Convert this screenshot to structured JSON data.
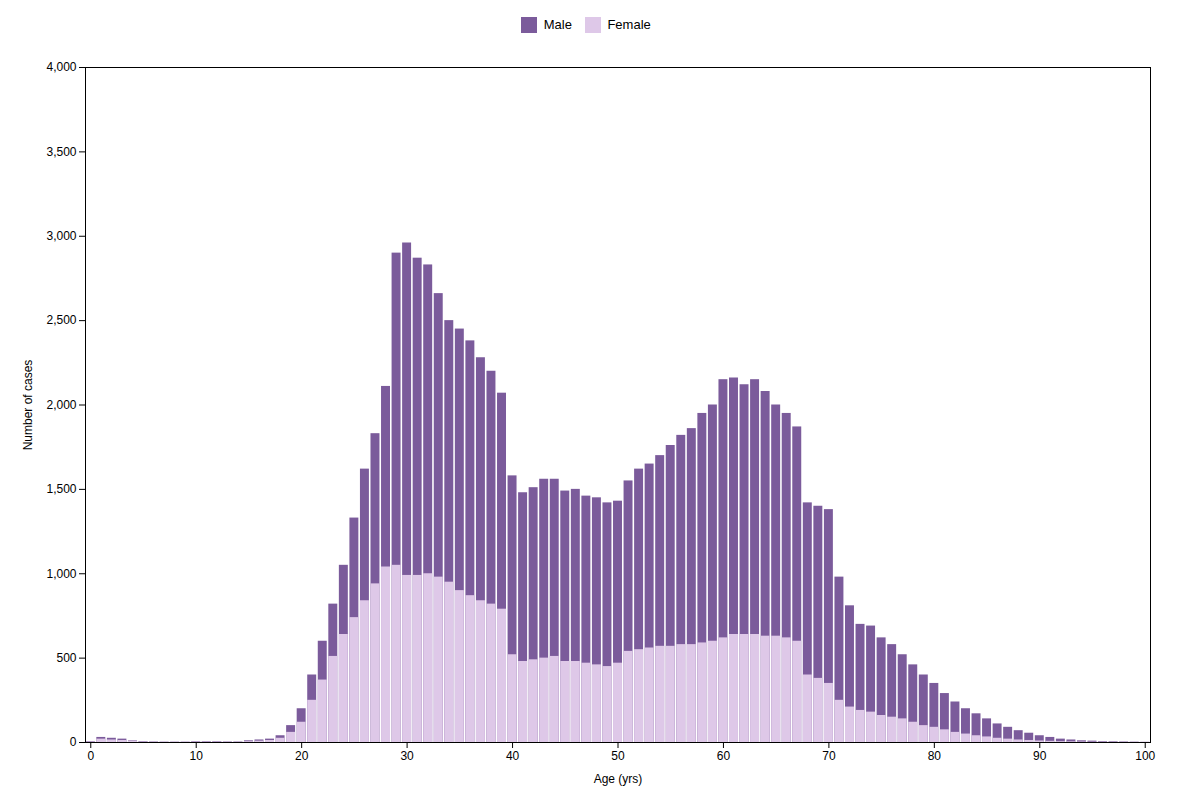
{
  "chart_data": {
    "type": "bar",
    "xlabel": "Age (yrs)",
    "ylabel": "Number of cases",
    "x": [
      0,
      1,
      2,
      3,
      4,
      5,
      6,
      7,
      8,
      9,
      10,
      11,
      12,
      13,
      14,
      15,
      16,
      17,
      18,
      19,
      20,
      21,
      22,
      23,
      24,
      25,
      26,
      27,
      28,
      29,
      30,
      31,
      32,
      33,
      34,
      35,
      36,
      37,
      38,
      39,
      40,
      41,
      42,
      43,
      44,
      45,
      46,
      47,
      48,
      49,
      50,
      51,
      52,
      53,
      54,
      55,
      56,
      57,
      58,
      59,
      60,
      61,
      62,
      63,
      64,
      65,
      66,
      67,
      68,
      69,
      70,
      71,
      72,
      73,
      74,
      75,
      76,
      77,
      78,
      79,
      80,
      81,
      82,
      83,
      84,
      85,
      86,
      87,
      88,
      89,
      90,
      91,
      92,
      93,
      94,
      95,
      96,
      97,
      98,
      99,
      100
    ],
    "series": [
      {
        "name": "Male",
        "color": "#7B5B9B",
        "values": [
          5,
          30,
          25,
          20,
          10,
          5,
          3,
          2,
          2,
          2,
          5,
          5,
          5,
          3,
          3,
          10,
          15,
          20,
          40,
          100,
          200,
          400,
          600,
          820,
          1050,
          1330,
          1620,
          1830,
          2110,
          2900,
          2960,
          2870,
          2830,
          2660,
          2500,
          2450,
          2380,
          2280,
          2200,
          2070,
          1580,
          1480,
          1510,
          1560,
          1560,
          1490,
          1500,
          1460,
          1450,
          1420,
          1430,
          1550,
          1620,
          1650,
          1700,
          1760,
          1820,
          1860,
          1950,
          2000,
          2150,
          2160,
          2120,
          2150,
          2080,
          2000,
          1950,
          1870,
          1420,
          1400,
          1380,
          980,
          810,
          700,
          690,
          620,
          580,
          520,
          460,
          400,
          350,
          290,
          240,
          200,
          170,
          140,
          110,
          90,
          70,
          55,
          40,
          30,
          20,
          15,
          10,
          8,
          5,
          4,
          3,
          2,
          1
        ]
      },
      {
        "name": "Female",
        "color": "#DEC8E8",
        "values": [
          3,
          20,
          15,
          12,
          8,
          3,
          2,
          2,
          2,
          2,
          3,
          3,
          3,
          2,
          2,
          5,
          8,
          12,
          25,
          60,
          120,
          250,
          370,
          510,
          640,
          740,
          840,
          940,
          1040,
          1050,
          990,
          990,
          1000,
          980,
          950,
          900,
          870,
          840,
          820,
          790,
          520,
          480,
          490,
          500,
          510,
          480,
          480,
          470,
          460,
          450,
          470,
          540,
          550,
          560,
          570,
          570,
          580,
          580,
          590,
          600,
          620,
          640,
          640,
          640,
          630,
          630,
          620,
          600,
          400,
          380,
          350,
          250,
          210,
          190,
          180,
          160,
          150,
          140,
          120,
          100,
          90,
          75,
          60,
          50,
          40,
          33,
          25,
          20,
          15,
          12,
          9,
          7,
          5,
          4,
          3,
          2,
          2,
          1,
          1,
          1,
          1
        ]
      }
    ],
    "xlim": [
      -0.5,
      100.5
    ],
    "xticks": [
      0,
      10,
      20,
      30,
      40,
      50,
      60,
      70,
      80,
      90,
      100
    ],
    "ylim": [
      0,
      4000
    ],
    "yticks": [
      0,
      500,
      {
        "value": 1000,
        "label": "1,000"
      },
      {
        "value": 1500,
        "label": "1,500"
      },
      {
        "value": 2000,
        "label": "2,000"
      },
      {
        "value": 2500,
        "label": "2,500"
      },
      {
        "value": 3000,
        "label": "3,000"
      },
      {
        "value": 3500,
        "label": "3,500"
      },
      {
        "value": 4000,
        "label": "4,000"
      }
    ],
    "stacked": false,
    "grid": false,
    "legend": "top"
  }
}
